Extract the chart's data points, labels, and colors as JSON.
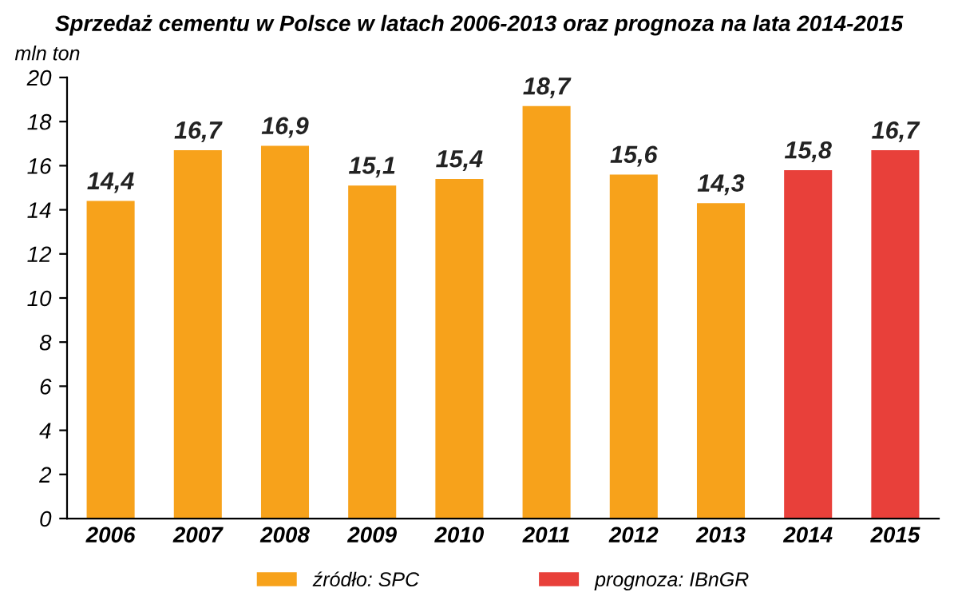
{
  "chart_data": {
    "type": "bar",
    "title": "Sprzedaż cementu w Polsce w latach 2006-2013 oraz prognoza na lata 2014-2015",
    "ylabel": "mln ton",
    "categories": [
      "2006",
      "2007",
      "2008",
      "2009",
      "2010",
      "2011",
      "2012",
      "2013",
      "2014",
      "2015"
    ],
    "series": [
      {
        "name": "źródło: SPC",
        "color": "#f7a21b",
        "values": [
          14.4,
          16.7,
          16.9,
          15.1,
          15.4,
          18.7,
          15.6,
          14.3,
          null,
          null
        ],
        "value_labels": [
          "14,4",
          "16,7",
          "16,9",
          "15,1",
          "15,4",
          "18,7",
          "15,6",
          "14,3",
          null,
          null
        ]
      },
      {
        "name": "prognoza: IBnGR",
        "color": "#e8403a",
        "values": [
          null,
          null,
          null,
          null,
          null,
          null,
          null,
          null,
          15.8,
          16.7
        ],
        "value_labels": [
          null,
          null,
          null,
          null,
          null,
          null,
          null,
          null,
          "15,8",
          "16,7"
        ]
      }
    ],
    "ylim": [
      0,
      20
    ],
    "yticks": [
      0,
      2,
      4,
      6,
      8,
      10,
      12,
      14,
      16,
      18,
      20
    ],
    "grid": false,
    "legend": "bottom"
  }
}
